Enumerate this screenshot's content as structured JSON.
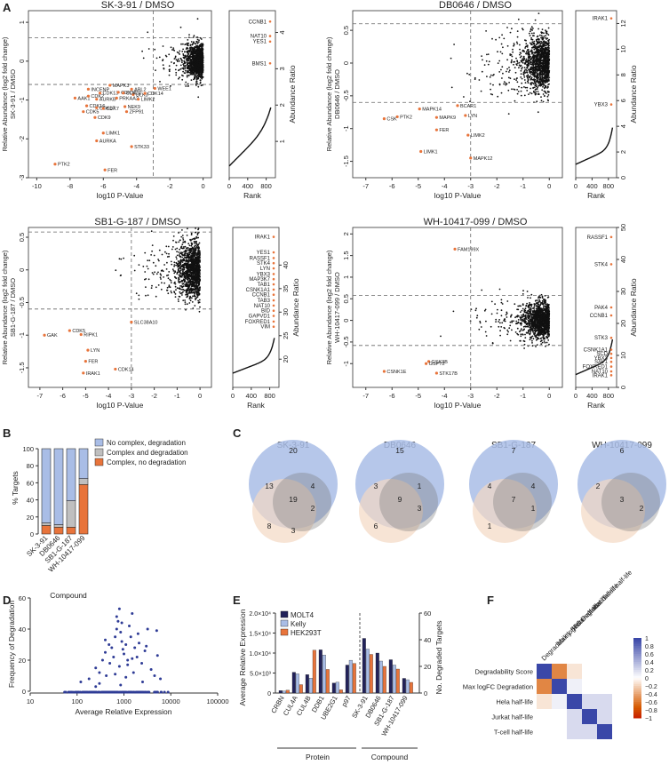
{
  "panels": {
    "A": {
      "label": "A",
      "xlabel": "log10 P-Value",
      "rank_xlabel": "Rank",
      "rank_ylabel": "Abundance Ratio",
      "subpanels": [
        {
          "title": "SK-3-91 / DMSO",
          "ylabel1": "Relative Abundance (log2 fold change)",
          "ylabel2": "SK-3-91 / DMSO",
          "xlim": [
            -10.5,
            0.5
          ],
          "xticks": [
            -10,
            -8,
            -6,
            -4,
            -2,
            0
          ],
          "ylim": [
            -3.0,
            1.3
          ],
          "yticks": [
            -3,
            -2,
            -1,
            0,
            1
          ],
          "hline": [
            0.6,
            -0.6
          ],
          "vline": -3,
          "labels": [
            {
              "t": "PTK2",
              "x": -8.9,
              "y": -2.65
            },
            {
              "t": "FER",
              "x": -5.9,
              "y": -2.8
            },
            {
              "t": "STK33",
              "x": -4.3,
              "y": -2.2
            },
            {
              "t": "AURKA",
              "x": -6.4,
              "y": -2.05
            },
            {
              "t": "LIMK1",
              "x": -6.0,
              "y": -1.85
            },
            {
              "t": "CDK9",
              "x": -6.5,
              "y": -1.45
            },
            {
              "t": "CDK5",
              "x": -7.2,
              "y": -1.3
            },
            {
              "t": "CDK16",
              "x": -7.0,
              "y": -1.15
            },
            {
              "t": "CDK17",
              "x": -6.4,
              "y": -1.2
            },
            {
              "t": "AAK1",
              "x": -7.7,
              "y": -0.95
            },
            {
              "t": "AURKB",
              "x": -6.4,
              "y": -0.98
            },
            {
              "t": "CDK2",
              "x": -6.9,
              "y": -0.9
            },
            {
              "t": "CDK7",
              "x": -6.0,
              "y": -1.22
            },
            {
              "t": "INCENP",
              "x": -6.9,
              "y": -0.72
            },
            {
              "t": "CDK13",
              "x": -6.2,
              "y": -0.82
            },
            {
              "t": "MAPK3",
              "x": -5.6,
              "y": -0.62
            },
            {
              "t": "CDK12",
              "x": -5.1,
              "y": -0.8
            },
            {
              "t": "PRKAA2",
              "x": -5.2,
              "y": -0.95
            },
            {
              "t": "ABL2",
              "x": -4.3,
              "y": -0.72
            },
            {
              "t": "ULK3",
              "x": -4.2,
              "y": -0.86
            },
            {
              "t": "LIMK2",
              "x": -3.9,
              "y": -0.98
            },
            {
              "t": "NEK9",
              "x": -4.7,
              "y": -1.17
            },
            {
              "t": "ZFP91",
              "x": -4.6,
              "y": -1.3
            },
            {
              "t": "CDK14",
              "x": -3.5,
              "y": -0.83
            },
            {
              "t": "WEE1",
              "x": -2.9,
              "y": -0.7
            },
            {
              "t": "CDK10",
              "x": -4.8,
              "y": -0.82
            }
          ],
          "rank_ylim": [
            0,
            4.6
          ],
          "rank_yticks": [
            1,
            2,
            3,
            4
          ],
          "rank_labels": [
            {
              "t": "CCNB1",
              "y": 4.3
            },
            {
              "t": "NAT10",
              "y": 3.9
            },
            {
              "t": "YES1",
              "y": 3.75
            },
            {
              "t": "BMS1",
              "y": 3.15
            }
          ]
        },
        {
          "title": "DB0646 / DMSO",
          "ylabel1": "Relative Abundance (log2 fold change)",
          "ylabel2": "DB0646 / DMSO",
          "xlim": [
            -7.5,
            0.5
          ],
          "xticks": [
            -7,
            -6,
            -5,
            -4,
            -3,
            -2,
            -1,
            0
          ],
          "ylim": [
            -1.75,
            0.8
          ],
          "yticks": [
            -1.5,
            -1.0,
            -0.5,
            0.0,
            0.5
          ],
          "hline": [
            0.6,
            -0.6
          ],
          "vline": -3,
          "labels": [
            {
              "t": "BCAR1",
              "x": -3.5,
              "y": -0.65
            },
            {
              "t": "MAPK14",
              "x": -4.95,
              "y": -0.7
            },
            {
              "t": "PTK2",
              "x": -5.8,
              "y": -0.82
            },
            {
              "t": "CSK",
              "x": -6.3,
              "y": -0.85
            },
            {
              "t": "MAPK9",
              "x": -4.3,
              "y": -0.83
            },
            {
              "t": "LYN",
              "x": -3.2,
              "y": -0.8
            },
            {
              "t": "FER",
              "x": -4.3,
              "y": -1.02
            },
            {
              "t": "LIMK2",
              "x": -3.1,
              "y": -1.1
            },
            {
              "t": "LIMK1",
              "x": -4.9,
              "y": -1.35
            },
            {
              "t": "MAPK12",
              "x": -3.0,
              "y": -1.45
            }
          ],
          "rank_ylim": [
            0,
            13
          ],
          "rank_yticks": [
            0,
            2,
            4,
            6,
            8,
            10,
            12
          ],
          "rank_labels": [
            {
              "t": "IRAK1",
              "y": 12.4
            },
            {
              "t": "YBX3",
              "y": 5.7
            }
          ]
        },
        {
          "title": "SB1-G-187 / DMSO",
          "ylabel1": "Relative Abundance (log2 fold change)",
          "ylabel2": "SB1-G-187 / DMSO",
          "xlim": [
            -7.5,
            0.5
          ],
          "xticks": [
            -7,
            -6,
            -5,
            -4,
            -3,
            -2,
            -1,
            0
          ],
          "ylim": [
            -1.8,
            0.65
          ],
          "yticks": [
            -1.5,
            -1.0,
            -0.5,
            0.0,
            0.5
          ],
          "hline": [
            0.58,
            -0.6
          ],
          "vline": -3,
          "labels": [
            {
              "t": "SLC38A10",
              "x": -3.0,
              "y": -0.8
            },
            {
              "t": "GAK",
              "x": -6.8,
              "y": -1.0
            },
            {
              "t": "CDK5",
              "x": -5.7,
              "y": -0.93
            },
            {
              "t": "RIPK1",
              "x": -5.2,
              "y": -0.99
            },
            {
              "t": "LYN",
              "x": -4.9,
              "y": -1.23
            },
            {
              "t": "FER",
              "x": -5.0,
              "y": -1.4
            },
            {
              "t": "IRAK1",
              "x": -5.1,
              "y": -1.58
            },
            {
              "t": "CDK14",
              "x": -3.7,
              "y": -1.52
            }
          ],
          "rank_ylim": [
            14,
            48
          ],
          "rank_yticks": [
            20,
            25,
            30,
            35,
            40
          ],
          "rank_labels": [
            {
              "t": "IRAK1",
              "y": 46
            },
            {
              "t": "YES1",
              "y": 42.7
            },
            {
              "t": "RASSF1",
              "y": 41.5
            },
            {
              "t": "STK4",
              "y": 40.4
            },
            {
              "t": "LYN",
              "y": 39.3
            },
            {
              "t": "YBX3",
              "y": 38.1
            },
            {
              "t": "MAP3K7",
              "y": 37.0
            },
            {
              "t": "TAB1",
              "y": 35.9
            },
            {
              "t": "CSNK1A1",
              "y": 34.8
            },
            {
              "t": "CCNB1",
              "y": 33.7
            },
            {
              "t": "TAB3",
              "y": 32.5
            },
            {
              "t": "NAT10",
              "y": 31.4
            },
            {
              "t": "BID",
              "y": 30.3
            },
            {
              "t": "GAPVD1",
              "y": 29.2
            },
            {
              "t": "FOXRED1",
              "y": 28.0
            },
            {
              "t": "VIM",
              "y": 26.9
            }
          ]
        },
        {
          "title": "WH-10417-099 / DMSO",
          "ylabel1": "Relative Abundance (log2 fold change)",
          "ylabel2": "WH-10417-099 / DMSO",
          "xlim": [
            -7.5,
            0.5
          ],
          "xticks": [
            -7,
            -6,
            -5,
            -4,
            -3,
            -2,
            -1,
            0
          ],
          "ylim": [
            -1.55,
            2.15
          ],
          "yticks": [
            -1.0,
            -0.5,
            0.0,
            0.5,
            1.0,
            1.5,
            2.0
          ],
          "hline": [
            0.58,
            -0.58
          ],
          "vline": -3,
          "labels": [
            {
              "t": "FAM199X",
              "x": -3.6,
              "y": 1.65
            },
            {
              "t": "GSK3B",
              "x": -4.6,
              "y": -0.95
            },
            {
              "t": "GSPT2",
              "x": -4.7,
              "y": -1.0
            },
            {
              "t": "CSNK1E",
              "x": -6.3,
              "y": -1.18
            },
            {
              "t": "STK17B",
              "x": -4.3,
              "y": -1.22
            }
          ],
          "rank_ylim": [
            0,
            50
          ],
          "rank_yticks": [
            0,
            10,
            20,
            30,
            40,
            50
          ],
          "rank_labels": [
            {
              "t": "RASSF1",
              "y": 47
            },
            {
              "t": "STK4",
              "y": 38.5
            },
            {
              "t": "PAK4",
              "y": 25
            },
            {
              "t": "CCNB1",
              "y": 22.5
            },
            {
              "t": "STK3",
              "y": 15.5
            },
            {
              "t": "CSNK1A1",
              "y": 11.8
            },
            {
              "t": "SCD",
              "y": 10.5
            },
            {
              "t": "YBX3",
              "y": 9.2
            },
            {
              "t": "SAV1",
              "y": 8.0
            },
            {
              "t": "FOXRED1",
              "y": 6.5
            },
            {
              "t": "NAT10",
              "y": 5.0
            },
            {
              "t": "IRAK1",
              "y": 3.8
            }
          ]
        }
      ]
    },
    "B": {
      "label": "B",
      "ylabel": "% Targets",
      "xlabel": "Compound",
      "yticks": [
        0,
        20,
        40,
        60,
        80,
        100
      ],
      "legend": [
        "No complex, degradation",
        "Complex and degradation",
        "Complex, no degradation"
      ],
      "colors": [
        "#a9bde6",
        "#bfbfbf",
        "#e8743b"
      ]
    },
    "C": {
      "label": "C",
      "venns": [
        {
          "title": "SK-3-91",
          "n": [
            "20",
            "13",
            "4",
            "19",
            "2",
            "8",
            "3"
          ]
        },
        {
          "title": "DB0646",
          "n": [
            "15",
            "3",
            "1",
            "9",
            "3",
            "6",
            ""
          ]
        },
        {
          "title": "SB1-G-187",
          "n": [
            "7",
            "4",
            "4",
            "7",
            "1",
            "1",
            ""
          ]
        },
        {
          "title": "WH-10417-099",
          "n": [
            "6",
            "2",
            "",
            "3",
            "2",
            "",
            ""
          ]
        }
      ]
    },
    "D": {
      "label": "D",
      "xlabel": "Average Relative Expression",
      "ylabel": "Frequency of Degradation",
      "xticks": [
        "10",
        "100",
        "1000",
        "10000",
        "100000"
      ],
      "yticks": [
        0,
        20,
        40,
        60
      ]
    },
    "E": {
      "label": "E",
      "ylabel": "Average Relative Expression",
      "ylabel2": "No. Degraded Targets",
      "yticks": [
        "0",
        "5.0×10³",
        "1.0×10⁴",
        "1.5×10⁴",
        "2.0×10⁴"
      ],
      "yticks2": [
        0,
        20,
        40,
        60
      ],
      "group_protein": "Protein",
      "group_compound": "Compound",
      "legend": [
        "MOLT4",
        "Kelly",
        "HEK293T"
      ]
    },
    "F": {
      "label": "F",
      "rows": [
        "Degradability Score",
        "Max logFC Degradation",
        "Hela half-life",
        "Jurkat half-life",
        "T-cell half-life"
      ],
      "cbar_ticks": [
        "1",
        "0.8",
        "0.6",
        "0.4",
        "0.2",
        "0",
        "−0.2",
        "−0.4",
        "−0.6",
        "−0.8",
        "−1"
      ]
    }
  },
  "chart_data": [
    {
      "type": "bar",
      "title": "",
      "stacked": true,
      "categories": [
        "SK-3-91",
        "DB0646",
        "SB1-G-187",
        "WH-10417-099"
      ],
      "series": [
        {
          "name": "Complex, no degradation",
          "values": [
            10,
            8,
            8,
            58
          ]
        },
        {
          "name": "Complex and degradation",
          "values": [
            3,
            3,
            31,
            7
          ]
        },
        {
          "name": "No complex, degradation",
          "values": [
            87,
            89,
            61,
            35
          ]
        }
      ],
      "ylabel": "% Targets",
      "xlabel": "Compound",
      "ylim": [
        0,
        100
      ]
    },
    {
      "type": "scatter",
      "title": "",
      "xlabel": "Average Relative Expression",
      "ylabel": "Frequency of Degradation",
      "xscale": "log",
      "xlim": [
        10,
        100000
      ],
      "ylim": [
        0,
        60
      ],
      "x": [
        120,
        180,
        250,
        300,
        350,
        400,
        420,
        480,
        500,
        550,
        600,
        650,
        700,
        750,
        800,
        850,
        900,
        950,
        1000,
        1100,
        1200,
        1300,
        1400,
        1500,
        1700,
        1900,
        2100,
        2400,
        2800,
        3200,
        3800,
        4500,
        5200,
        6000,
        700,
        900,
        1200,
        1600,
        400,
        2000,
        300,
        3000,
        800,
        1500,
        250,
        5000,
        650,
        1100,
        2500,
        850
      ],
      "y": [
        6,
        8,
        15,
        12,
        20,
        25,
        10,
        30,
        18,
        28,
        22,
        35,
        40,
        45,
        53,
        38,
        32,
        27,
        24,
        30,
        20,
        42,
        35,
        50,
        28,
        22,
        31,
        18,
        26,
        40,
        14,
        10,
        23,
        8,
        48,
        44,
        17,
        12,
        33,
        37,
        5,
        29,
        16,
        21,
        3,
        39,
        11,
        9,
        6,
        4
      ]
    },
    {
      "type": "bar",
      "title": "",
      "categories": [
        "CRBN",
        "CUL4A",
        "CUL4B",
        "DDB1",
        "UBE2G1",
        "p97"
      ],
      "series": [
        {
          "name": "MOLT4",
          "values": [
            600,
            5200,
            4600,
            10800,
            2500,
            7000
          ]
        },
        {
          "name": "Kelly",
          "values": [
            500,
            4800,
            3700,
            9500,
            2700,
            8200
          ]
        },
        {
          "name": "HEK293T",
          "values": [
            700,
            2100,
            10700,
            5900,
            800,
            7400
          ]
        }
      ],
      "ylabel": "Average Relative Expression",
      "ylim": [
        0,
        20000
      ]
    },
    {
      "type": "bar",
      "title": "",
      "categories": [
        "SK-3-91",
        "DB0646",
        "SB1-G-187",
        "WH-10417-099"
      ],
      "series": [
        {
          "name": "MOLT4",
          "values": [
            41,
            30,
            25,
            11
          ]
        },
        {
          "name": "Kelly",
          "values": [
            33,
            24,
            21,
            10
          ]
        },
        {
          "name": "HEK293T",
          "values": [
            29,
            20,
            18,
            8
          ]
        }
      ],
      "ylabel": "No. Degraded Targets",
      "ylim": [
        0,
        60
      ]
    },
    {
      "type": "heatmap",
      "title": "",
      "rows": [
        "Degradability Score",
        "Max logFC Degradation",
        "Hela half-life",
        "Jurkat half-life",
        "T-cell half-life"
      ],
      "cols": [
        "Degradability Score",
        "Max logFC Degradation",
        "Hela half-life",
        "Jurkat half-life",
        "T-cell half-life"
      ],
      "values": [
        [
          1,
          -0.55,
          -0.12,
          null,
          null
        ],
        [
          -0.55,
          1,
          0.08,
          null,
          null
        ],
        [
          -0.12,
          0.08,
          1,
          0.2,
          0.2
        ],
        [
          null,
          null,
          0.2,
          1,
          0.2
        ],
        [
          null,
          null,
          0.2,
          0.2,
          1
        ]
      ]
    }
  ]
}
